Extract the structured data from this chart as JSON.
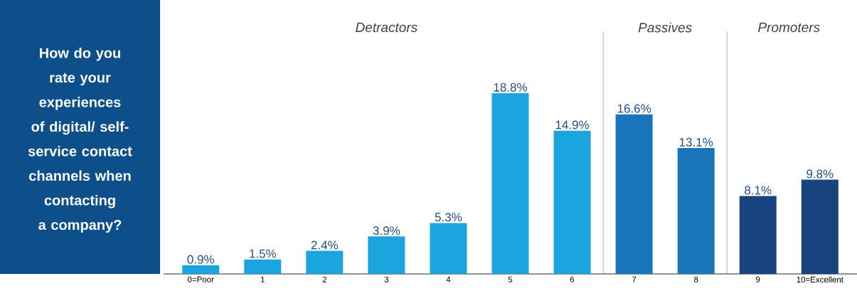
{
  "chart_data": {
    "type": "bar",
    "title": "How do you rate your experiences of digital/ self-service contact channels when contacting a company?",
    "categories": [
      "0=Poor",
      "1",
      "2",
      "3",
      "4",
      "5",
      "6",
      "7",
      "8",
      "9",
      "10=Excellent"
    ],
    "values": [
      0.9,
      1.5,
      2.4,
      3.9,
      5.3,
      18.8,
      14.9,
      16.6,
      13.1,
      8.1,
      9.8
    ],
    "value_labels": [
      "0.9%",
      "1.5%",
      "2.4%",
      "3.9%",
      "5.3%",
      "18.8%",
      "14.9%",
      "16.6%",
      "13.1%",
      "8.1%",
      "9.8%"
    ],
    "colors": [
      "#1aa5df",
      "#1aa5df",
      "#1aa5df",
      "#1aa5df",
      "#1aa5df",
      "#1aa5df",
      "#1aa5df",
      "#1a76bb",
      "#1a76bb",
      "#17437f",
      "#17437f"
    ],
    "annotations": [
      "Detractors",
      "Passives",
      "Promoters"
    ]
  }
}
